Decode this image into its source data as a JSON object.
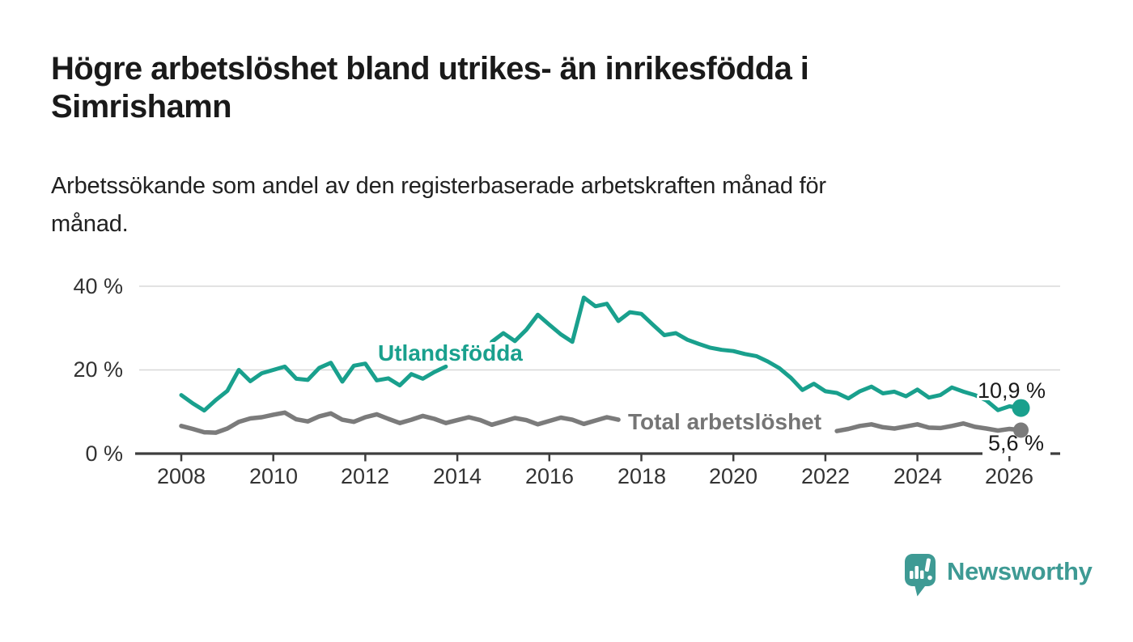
{
  "chart_data": {
    "type": "line",
    "title": "Högre arbetslöshet bland utrikes- än inrikesfödda i\nSimrishamn",
    "subtitle": "Arbetssökande som andel av den registerbaserade arbetskraften månad för\nmånad.",
    "unit": "%",
    "x_start": 2008,
    "x_step": 0.25,
    "xlim": [
      2007.0,
      2027.1
    ],
    "ylim": [
      0,
      43
    ],
    "grid": "horizontal",
    "x_ticks": [
      2008,
      2010,
      2012,
      2014,
      2016,
      2018,
      2020,
      2022,
      2024,
      2026
    ],
    "y_ticks": [
      {
        "value": 0,
        "label": "0 %"
      },
      {
        "value": 20,
        "label": "20 %"
      },
      {
        "value": 40,
        "label": "40 %"
      }
    ],
    "series": [
      {
        "name": "Utlandsfödda",
        "color": "#19a08d",
        "end_label": "10,9 %",
        "end_value": 10.9,
        "values": [
          14.0,
          12.0,
          10.3,
          12.8,
          15.0,
          20.0,
          17.3,
          19.2,
          20.0,
          20.8,
          17.9,
          17.6,
          20.5,
          21.7,
          17.2,
          21.0,
          21.5,
          17.5,
          18.0,
          16.3,
          19.0,
          17.9,
          19.5,
          20.8,
          null,
          null,
          null,
          26.7,
          28.8,
          26.9,
          29.6,
          33.2,
          30.8,
          28.5,
          26.7,
          37.3,
          35.2,
          35.8,
          31.7,
          33.8,
          33.4,
          30.8,
          28.3,
          28.8,
          27.2,
          26.2,
          25.3,
          24.8,
          24.5,
          23.8,
          23.3,
          22.0,
          20.4,
          18.1,
          15.2,
          16.7,
          14.9,
          14.5,
          13.2,
          14.9,
          16.0,
          14.4,
          14.8,
          13.7,
          15.3,
          13.4,
          14.0,
          15.8,
          14.8,
          14.0,
          12.7,
          10.4,
          11.3,
          10.9
        ]
      },
      {
        "name": "Total arbetslöshet",
        "color": "#7b7b7b",
        "end_label": "5,6 %",
        "end_value": 5.6,
        "values": [
          6.6,
          5.9,
          5.1,
          5.0,
          6.0,
          7.6,
          8.4,
          8.7,
          9.3,
          9.8,
          8.2,
          7.7,
          8.9,
          9.6,
          8.1,
          7.6,
          8.7,
          9.4,
          8.3,
          7.3,
          8.1,
          9.0,
          8.3,
          7.3,
          8.0,
          8.7,
          8.0,
          6.9,
          7.7,
          8.5,
          8.0,
          7.0,
          7.8,
          8.6,
          8.1,
          7.1,
          7.9,
          8.7,
          8.1,
          null,
          null,
          null,
          null,
          null,
          null,
          null,
          null,
          null,
          null,
          null,
          null,
          null,
          null,
          null,
          null,
          null,
          null,
          5.4,
          5.9,
          6.6,
          7.0,
          6.3,
          6.0,
          6.5,
          7.0,
          6.2,
          6.1,
          6.6,
          7.2,
          6.4,
          6.0,
          5.5,
          5.9,
          5.6
        ]
      }
    ],
    "colors": {
      "axis": "#3d3d3d",
      "grid": "#d8d8d8",
      "tick_text": "#333333"
    }
  },
  "footer": {
    "brand": "Newsworthy",
    "brand_color": "#3e9a94",
    "logo_icon": "speech-bubble-bar-chart"
  }
}
